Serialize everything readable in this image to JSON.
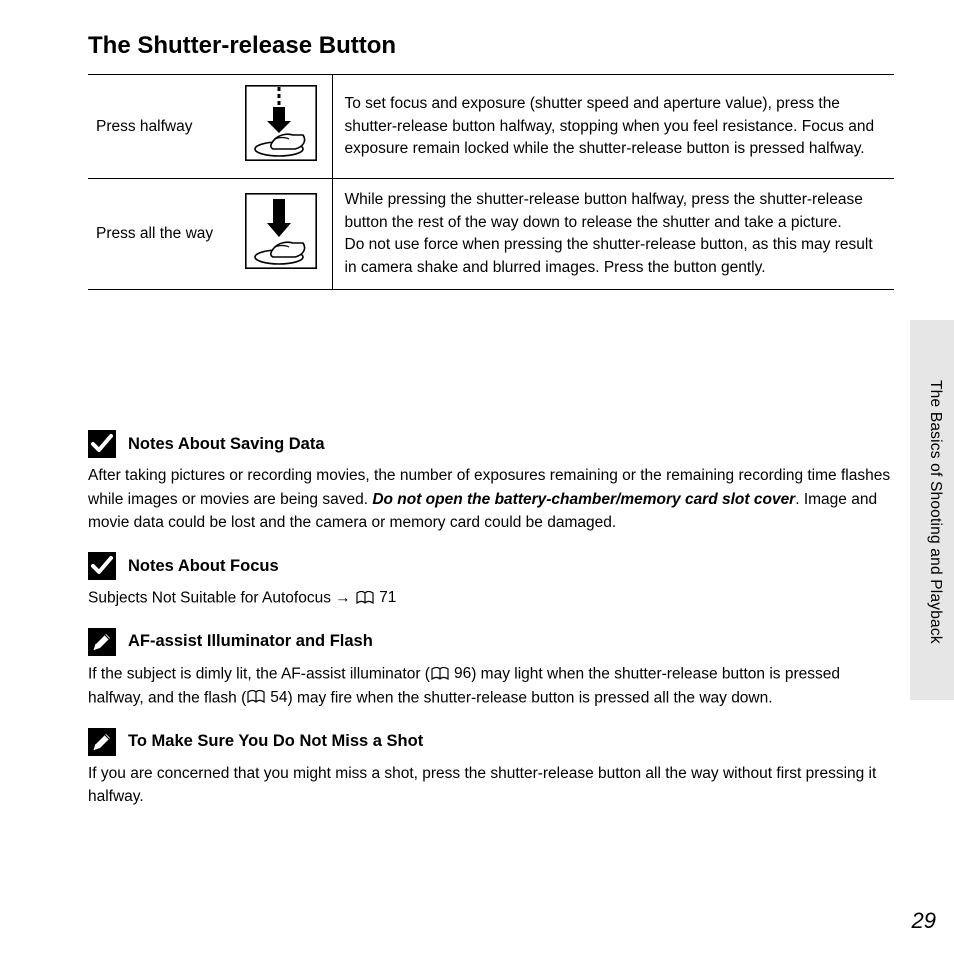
{
  "title": "The Shutter-release Button",
  "table": {
    "rows": [
      {
        "label": "Press halfway",
        "icon": "arrow-down-halfway",
        "desc": "To set focus and exposure (shutter speed and aperture value), press the shutter-release button halfway, stopping when you feel resistance. Focus and exposure remain locked while the shutter-release button is pressed halfway."
      },
      {
        "label": "Press all the way",
        "icon": "arrow-down-full",
        "desc": "While pressing the shutter-release button halfway, press the shutter-release button the rest of the way down to release the shutter and take a picture.\nDo not use force when pressing the shutter-release button, as this may result in camera shake and blurred images. Press the button gently."
      }
    ]
  },
  "notes": [
    {
      "badge": "check",
      "title": "Notes About Saving Data",
      "body_parts": [
        {
          "text": "After taking pictures or recording movies, the number of exposures remaining or the remaining recording time flashes while images or movies are being saved. ",
          "bold": false,
          "italic": false
        },
        {
          "text": "Do not open the battery-chamber/memory card slot cover",
          "bold": true,
          "italic": true
        },
        {
          "text": ". Image and movie data could be lost and the camera or memory card could be damaged.",
          "bold": false,
          "italic": false
        }
      ]
    },
    {
      "badge": "check",
      "title": "Notes About Focus",
      "body_parts": [
        {
          "text": "Subjects Not Suitable for Autofocus → ",
          "bold": false,
          "italic": false
        },
        {
          "ref": "71"
        }
      ]
    },
    {
      "badge": "pencil",
      "title": "AF-assist Illuminator and Flash",
      "body_parts": [
        {
          "text": "If the subject is dimly lit, the AF-assist illuminator (",
          "bold": false,
          "italic": false
        },
        {
          "ref": "96"
        },
        {
          "text": ") may light when the shutter-release button is pressed halfway, and the flash (",
          "bold": false,
          "italic": false
        },
        {
          "ref": "54"
        },
        {
          "text": ") may fire when the shutter-release button is pressed all the way down.",
          "bold": false,
          "italic": false
        }
      ]
    },
    {
      "badge": "pencil",
      "title": "To Make Sure You Do Not Miss a Shot",
      "body_parts": [
        {
          "text": "If you are concerned that you might miss a shot, press the shutter-release button all the way without first pressing it halfway.",
          "bold": false,
          "italic": false
        }
      ]
    }
  ],
  "side_label": "The Basics of Shooting and Playback",
  "page_number": "29"
}
